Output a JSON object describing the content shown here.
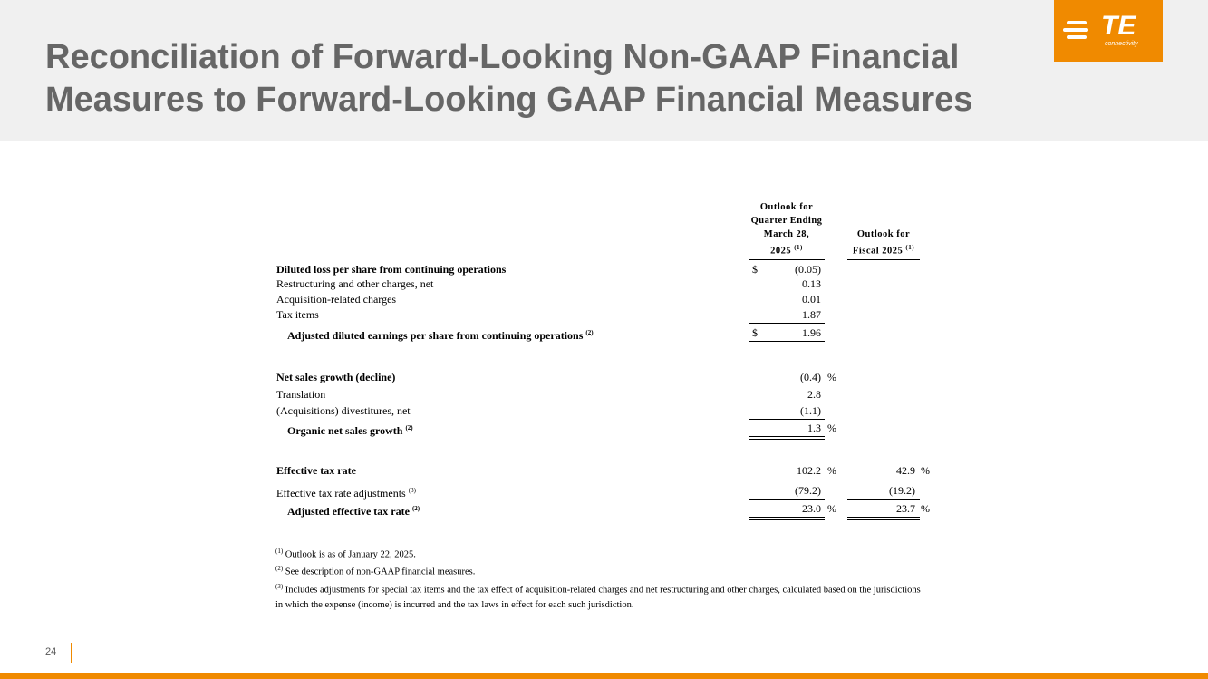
{
  "header": {
    "title_lines": [
      "Reconciliation of Forward-Looking Non-GAAP Financial",
      "Measures to Forward-Looking GAAP Financial Measures"
    ],
    "logo": {
      "mark": "TE",
      "tagline": "connectivity"
    }
  },
  "table": {
    "columns": [
      {
        "lines": [
          "Outlook for",
          "Quarter Ending",
          "March 28,",
          "2025"
        ],
        "note": "(1)"
      },
      {
        "lines": [
          "Outlook for",
          "Fiscal 2025"
        ],
        "note": "(1)"
      }
    ],
    "rows": [
      {
        "label": "Diluted loss per share from continuing operations",
        "dollar": "$",
        "q": "(0.05)"
      },
      {
        "label": "Restructuring and other charges, net",
        "q": "0.13"
      },
      {
        "label": "Acquisition-related charges",
        "q": "0.01"
      },
      {
        "label": "Tax items",
        "q": "1.87"
      },
      {
        "label": "Adjusted diluted earnings per share from continuing operations",
        "note": "(2)",
        "dollar": "$",
        "q": "1.96"
      },
      {
        "label": "Net sales growth (decline)",
        "q": "(0.4)",
        "q_unit": "%"
      },
      {
        "label": "Translation",
        "q": "2.8"
      },
      {
        "label": "(Acquisitions) divestitures, net",
        "q": "(1.1)"
      },
      {
        "label": "Organic net sales growth",
        "note": "(2)",
        "q": "1.3",
        "q_unit": "%"
      },
      {
        "label": "Effective tax rate",
        "q": "102.2",
        "q_unit": "%",
        "fy": "42.9",
        "fy_unit": "%"
      },
      {
        "label": "Effective tax rate adjustments",
        "note": "(3)",
        "q": "(79.2)",
        "fy": "(19.2)"
      },
      {
        "label": "Adjusted effective tax rate",
        "note": "(2)",
        "q": "23.0",
        "q_unit": "%",
        "fy": "23.7",
        "fy_unit": "%"
      }
    ]
  },
  "footnotes": [
    {
      "note": "(1)",
      "text": "Outlook is as of January 22, 2025."
    },
    {
      "note": "(2)",
      "text": "See description of non-GAAP financial measures."
    },
    {
      "note": "(3)",
      "text": "Includes adjustments for special tax items and the tax effect of acquisition-related charges and net restructuring and other charges, calculated based on the jurisdictions in which the expense (income) is incurred and the tax laws in effect for each such jurisdiction."
    }
  ],
  "page_number": "24"
}
